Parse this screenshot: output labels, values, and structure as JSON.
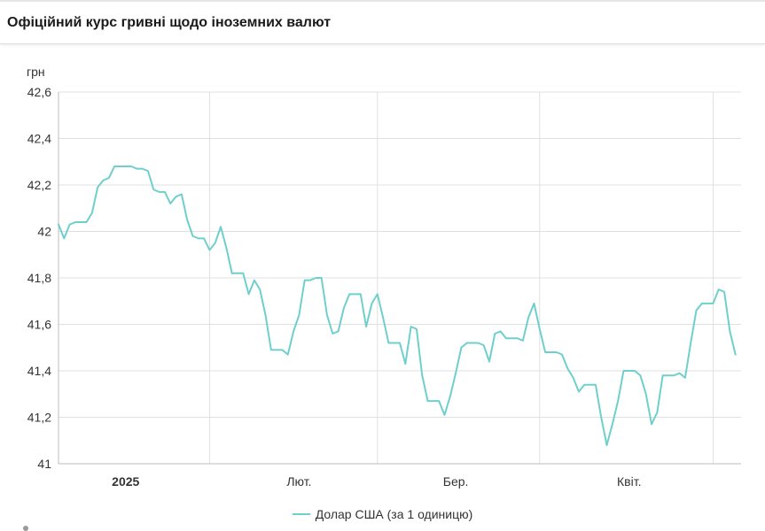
{
  "header": {
    "title": "Офіційний курс гривні щодо іноземних валют"
  },
  "colors": {
    "series": "#6fcfcc",
    "grid": "#e0e0e0"
  },
  "chart_data": {
    "type": "line",
    "ylabel": "грн",
    "ylim": [
      41,
      42.6
    ],
    "yticks": [
      {
        "value": 41,
        "label": "41"
      },
      {
        "value": 41.2,
        "label": "41,2"
      },
      {
        "value": 41.4,
        "label": "41,4"
      },
      {
        "value": 41.6,
        "label": "41,6"
      },
      {
        "value": 41.8,
        "label": "41,8"
      },
      {
        "value": 42,
        "label": "42"
      },
      {
        "value": 42.2,
        "label": "42,2"
      },
      {
        "value": 42.4,
        "label": "42,4"
      },
      {
        "value": 42.6,
        "label": "42,6"
      }
    ],
    "xlim": [
      "2024-12-20",
      "2025-04-21"
    ],
    "xticks": [
      {
        "date": "2025-01-01",
        "label": "2025",
        "bold": true
      },
      {
        "date": "2025-02-01",
        "label": "Лют.",
        "bold": false
      },
      {
        "date": "2025-03-01",
        "label": "Бер.",
        "bold": false
      },
      {
        "date": "2025-04-01",
        "label": "Квіт.",
        "bold": false
      }
    ],
    "xgrid": [
      "2025-01-16",
      "2025-02-15",
      "2025-03-16",
      "2025-04-16"
    ],
    "series": [
      {
        "name": "Долар США (за 1 одиницю)",
        "points": [
          [
            "2024-12-20",
            42.03
          ],
          [
            "2024-12-21",
            41.97
          ],
          [
            "2024-12-22",
            42.03
          ],
          [
            "2024-12-23",
            42.04
          ],
          [
            "2024-12-24",
            42.04
          ],
          [
            "2024-12-25",
            42.04
          ],
          [
            "2024-12-26",
            42.08
          ],
          [
            "2024-12-27",
            42.19
          ],
          [
            "2024-12-28",
            42.22
          ],
          [
            "2024-12-29",
            42.23
          ],
          [
            "2024-12-30",
            42.28
          ],
          [
            "2024-12-31",
            42.28
          ],
          [
            "2025-01-01",
            42.28
          ],
          [
            "2025-01-02",
            42.28
          ],
          [
            "2025-01-03",
            42.27
          ],
          [
            "2025-01-04",
            42.27
          ],
          [
            "2025-01-05",
            42.26
          ],
          [
            "2025-01-06",
            42.18
          ],
          [
            "2025-01-07",
            42.17
          ],
          [
            "2025-01-08",
            42.17
          ],
          [
            "2025-01-09",
            42.12
          ],
          [
            "2025-01-10",
            42.15
          ],
          [
            "2025-01-11",
            42.16
          ],
          [
            "2025-01-12",
            42.05
          ],
          [
            "2025-01-13",
            41.98
          ],
          [
            "2025-01-14",
            41.97
          ],
          [
            "2025-01-15",
            41.97
          ],
          [
            "2025-01-16",
            41.92
          ],
          [
            "2025-01-17",
            41.95
          ],
          [
            "2025-01-18",
            42.02
          ],
          [
            "2025-01-19",
            41.93
          ],
          [
            "2025-01-20",
            41.82
          ],
          [
            "2025-01-21",
            41.82
          ],
          [
            "2025-01-22",
            41.82
          ],
          [
            "2025-01-23",
            41.73
          ],
          [
            "2025-01-24",
            41.79
          ],
          [
            "2025-01-25",
            41.75
          ],
          [
            "2025-01-26",
            41.64
          ],
          [
            "2025-01-27",
            41.49
          ],
          [
            "2025-01-28",
            41.49
          ],
          [
            "2025-01-29",
            41.49
          ],
          [
            "2025-01-30",
            41.47
          ],
          [
            "2025-01-31",
            41.57
          ],
          [
            "2025-02-01",
            41.64
          ],
          [
            "2025-02-02",
            41.79
          ],
          [
            "2025-02-03",
            41.79
          ],
          [
            "2025-02-04",
            41.8
          ],
          [
            "2025-02-05",
            41.8
          ],
          [
            "2025-02-06",
            41.64
          ],
          [
            "2025-02-07",
            41.56
          ],
          [
            "2025-02-08",
            41.57
          ],
          [
            "2025-02-09",
            41.67
          ],
          [
            "2025-02-10",
            41.73
          ],
          [
            "2025-02-11",
            41.73
          ],
          [
            "2025-02-12",
            41.73
          ],
          [
            "2025-02-13",
            41.59
          ],
          [
            "2025-02-14",
            41.69
          ],
          [
            "2025-02-15",
            41.73
          ],
          [
            "2025-02-16",
            41.63
          ],
          [
            "2025-02-17",
            41.52
          ],
          [
            "2025-02-18",
            41.52
          ],
          [
            "2025-02-19",
            41.52
          ],
          [
            "2025-02-20",
            41.43
          ],
          [
            "2025-02-21",
            41.59
          ],
          [
            "2025-02-22",
            41.58
          ],
          [
            "2025-02-23",
            41.38
          ],
          [
            "2025-02-24",
            41.27
          ],
          [
            "2025-02-25",
            41.27
          ],
          [
            "2025-02-26",
            41.27
          ],
          [
            "2025-02-27",
            41.21
          ],
          [
            "2025-02-28",
            41.29
          ],
          [
            "2025-03-01",
            41.39
          ],
          [
            "2025-03-02",
            41.5
          ],
          [
            "2025-03-03",
            41.52
          ],
          [
            "2025-03-04",
            41.52
          ],
          [
            "2025-03-05",
            41.52
          ],
          [
            "2025-03-06",
            41.51
          ],
          [
            "2025-03-07",
            41.44
          ],
          [
            "2025-03-08",
            41.56
          ],
          [
            "2025-03-09",
            41.57
          ],
          [
            "2025-03-10",
            41.54
          ],
          [
            "2025-03-11",
            41.54
          ],
          [
            "2025-03-12",
            41.54
          ],
          [
            "2025-03-13",
            41.53
          ],
          [
            "2025-03-14",
            41.63
          ],
          [
            "2025-03-15",
            41.69
          ],
          [
            "2025-03-16",
            41.58
          ],
          [
            "2025-03-17",
            41.48
          ],
          [
            "2025-03-18",
            41.48
          ],
          [
            "2025-03-19",
            41.48
          ],
          [
            "2025-03-20",
            41.47
          ],
          [
            "2025-03-21",
            41.41
          ],
          [
            "2025-03-22",
            41.37
          ],
          [
            "2025-03-23",
            41.31
          ],
          [
            "2025-03-24",
            41.34
          ],
          [
            "2025-03-25",
            41.34
          ],
          [
            "2025-03-26",
            41.34
          ],
          [
            "2025-03-27",
            41.2
          ],
          [
            "2025-03-28",
            41.08
          ],
          [
            "2025-03-29",
            41.17
          ],
          [
            "2025-03-30",
            41.27
          ],
          [
            "2025-03-31",
            41.4
          ],
          [
            "2025-04-01",
            41.4
          ],
          [
            "2025-04-02",
            41.4
          ],
          [
            "2025-04-03",
            41.38
          ],
          [
            "2025-04-04",
            41.3
          ],
          [
            "2025-04-05",
            41.17
          ],
          [
            "2025-04-06",
            41.22
          ],
          [
            "2025-04-07",
            41.38
          ],
          [
            "2025-04-08",
            41.38
          ],
          [
            "2025-04-09",
            41.38
          ],
          [
            "2025-04-10",
            41.39
          ],
          [
            "2025-04-11",
            41.37
          ],
          [
            "2025-04-12",
            41.52
          ],
          [
            "2025-04-13",
            41.66
          ],
          [
            "2025-04-14",
            41.69
          ],
          [
            "2025-04-15",
            41.69
          ],
          [
            "2025-04-16",
            41.69
          ],
          [
            "2025-04-17",
            41.75
          ],
          [
            "2025-04-18",
            41.74
          ],
          [
            "2025-04-19",
            41.57
          ],
          [
            "2025-04-20",
            41.47
          ]
        ]
      }
    ]
  }
}
